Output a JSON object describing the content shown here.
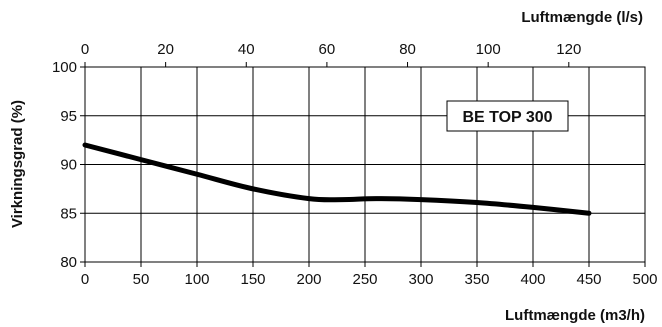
{
  "chart_data": {
    "type": "line",
    "badge": "BE TOP 300",
    "xlabel": "Luftmængde (m3/h)",
    "x2label": "Luftmængde (l/s)",
    "ylabel": "Virkningsgrad (%)",
    "xlim": [
      0,
      500
    ],
    "x2lim": [
      0,
      138.9
    ],
    "ylim": [
      80,
      100
    ],
    "x_ticks": [
      "0",
      "50",
      "100",
      "150",
      "200",
      "250",
      "300",
      "350",
      "400",
      "450",
      "500"
    ],
    "x2_ticks": [
      "0",
      "20",
      "40",
      "60",
      "80",
      "100",
      "120"
    ],
    "y_ticks": [
      "80",
      "85",
      "90",
      "95",
      "100"
    ],
    "grid": true,
    "line_color": "#000000",
    "series": [
      {
        "x": [
          0,
          50,
          100,
          150,
          200,
          230,
          260,
          300,
          350,
          400,
          450
        ],
        "y": [
          92,
          90.5,
          89,
          87.5,
          86.5,
          86.4,
          86.5,
          86.4,
          86.1,
          85.6,
          85
        ]
      }
    ]
  }
}
